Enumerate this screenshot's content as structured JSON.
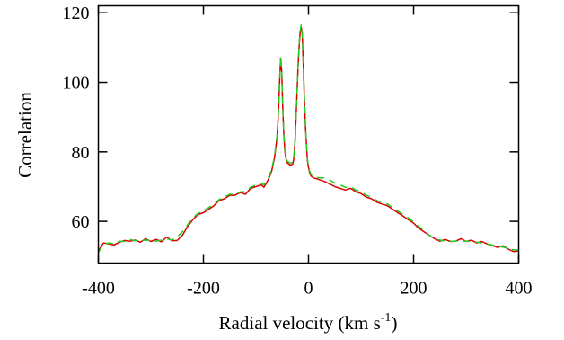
{
  "chart_data": {
    "type": "line",
    "title": "",
    "xlabel": "Radial velocity (km s",
    "xlabel_sup": "-1",
    "xlabel_tail": ")",
    "ylabel": "Correlation",
    "xlim": [
      -400,
      400
    ],
    "ylim": [
      48,
      122
    ],
    "xticks": [
      -400,
      -200,
      0,
      200,
      400
    ],
    "yticks": [
      60,
      80,
      100,
      120
    ],
    "grid": false,
    "legend": "none",
    "series": [
      {
        "color": "#dd0000",
        "dash": "solid",
        "x": [
          -400,
          -390,
          -380,
          -370,
          -360,
          -350,
          -340,
          -330,
          -320,
          -310,
          -300,
          -290,
          -280,
          -270,
          -260,
          -250,
          -240,
          -230,
          -220,
          -210,
          -200,
          -190,
          -180,
          -170,
          -160,
          -150,
          -140,
          -130,
          -120,
          -110,
          -100,
          -90,
          -85,
          -80,
          -75,
          -70,
          -65,
          -60,
          -57,
          -55,
          -53,
          -51,
          -49,
          -47,
          -45,
          -42,
          -40,
          -35,
          -30,
          -28,
          -26,
          -24,
          -22,
          -20,
          -18,
          -16,
          -14,
          -12,
          -10,
          -8,
          -6,
          -4,
          -2,
          0,
          2,
          5,
          10,
          15,
          20,
          30,
          40,
          50,
          60,
          70,
          80,
          90,
          100,
          110,
          120,
          130,
          140,
          150,
          160,
          170,
          180,
          190,
          200,
          210,
          220,
          230,
          240,
          250,
          260,
          270,
          280,
          290,
          300,
          310,
          320,
          330,
          340,
          350,
          360,
          370,
          380,
          390,
          400
        ],
        "y": [
          51.5,
          53.8,
          53.5,
          53.2,
          54.0,
          54.5,
          54.3,
          54.6,
          54.0,
          55.0,
          54.2,
          54.8,
          54.1,
          55.5,
          54.4,
          54.5,
          56.0,
          58.5,
          60.5,
          62.0,
          62.5,
          63.5,
          64.5,
          66.0,
          66.5,
          67.5,
          67.5,
          68.3,
          67.8,
          69.5,
          70.0,
          70.5,
          69.8,
          71.0,
          72.5,
          74.5,
          78.0,
          84.0,
          92.0,
          100.0,
          107.0,
          103.0,
          93.0,
          85.0,
          80.0,
          77.5,
          76.8,
          76.2,
          76.5,
          78.0,
          82.0,
          89.0,
          96.0,
          104.0,
          110.0,
          114.0,
          116.0,
          114.0,
          106.0,
          96.0,
          88.0,
          82.0,
          77.5,
          75.5,
          74.0,
          73.0,
          72.5,
          72.3,
          72.0,
          71.5,
          70.8,
          70.0,
          69.5,
          69.0,
          69.5,
          68.5,
          68.0,
          67.0,
          66.5,
          65.5,
          65.0,
          64.5,
          63.5,
          62.5,
          61.5,
          60.5,
          59.5,
          58.0,
          57.0,
          56.0,
          55.0,
          54.3,
          54.8,
          54.2,
          54.3,
          55.0,
          54.2,
          54.6,
          53.8,
          54.2,
          53.5,
          53.0,
          52.5,
          53.0,
          52.0,
          51.3,
          51.5
        ]
      },
      {
        "color": "#22cc22",
        "dash": "8,6",
        "x": [
          -400,
          -390,
          -380,
          -370,
          -360,
          -350,
          -340,
          -330,
          -320,
          -310,
          -300,
          -290,
          -280,
          -270,
          -260,
          -250,
          -240,
          -230,
          -220,
          -210,
          -200,
          -190,
          -180,
          -170,
          -160,
          -150,
          -140,
          -130,
          -120,
          -110,
          -100,
          -90,
          -85,
          -80,
          -75,
          -70,
          -65,
          -60,
          -57,
          -55,
          -53,
          -51,
          -49,
          -47,
          -45,
          -42,
          -40,
          -35,
          -30,
          -28,
          -26,
          -24,
          -22,
          -20,
          -18,
          -16,
          -14,
          -12,
          -10,
          -8,
          -6,
          -4,
          -2,
          0,
          2,
          5,
          10,
          15,
          20,
          30,
          40,
          50,
          60,
          70,
          80,
          90,
          100,
          110,
          120,
          130,
          140,
          150,
          160,
          170,
          180,
          190,
          200,
          210,
          220,
          230,
          240,
          250,
          260,
          270,
          280,
          290,
          300,
          310,
          320,
          330,
          340,
          350,
          360,
          370,
          380,
          390,
          400
        ],
        "y": [
          51.0,
          53.5,
          53.8,
          53.6,
          54.3,
          54.2,
          54.8,
          54.4,
          54.5,
          54.6,
          54.5,
          54.3,
          54.6,
          55.0,
          54.6,
          55.5,
          57.0,
          59.0,
          61.0,
          62.3,
          63.0,
          64.0,
          65.0,
          66.3,
          67.0,
          67.8,
          67.8,
          68.5,
          68.5,
          69.8,
          70.5,
          71.0,
          70.5,
          71.5,
          73.0,
          75.0,
          78.5,
          84.5,
          92.5,
          100.5,
          107.5,
          103.5,
          93.5,
          85.5,
          80.5,
          78.0,
          77.3,
          76.8,
          77.0,
          78.5,
          82.5,
          89.5,
          96.5,
          104.5,
          110.5,
          114.5,
          116.5,
          114.5,
          106.5,
          96.5,
          88.5,
          82.5,
          78.0,
          76.0,
          74.5,
          73.5,
          73.0,
          72.8,
          72.5,
          72.5,
          72.0,
          71.0,
          70.5,
          69.8,
          70.0,
          69.0,
          68.5,
          67.5,
          67.0,
          66.0,
          65.5,
          65.0,
          64.0,
          63.0,
          62.0,
          61.0,
          59.8,
          58.5,
          57.3,
          56.0,
          55.0,
          54.6,
          54.4,
          54.3,
          54.3,
          54.4,
          54.3,
          54.2,
          54.0,
          53.8,
          53.5,
          53.2,
          52.8,
          52.6,
          52.2,
          51.8,
          51.7
        ]
      }
    ]
  }
}
